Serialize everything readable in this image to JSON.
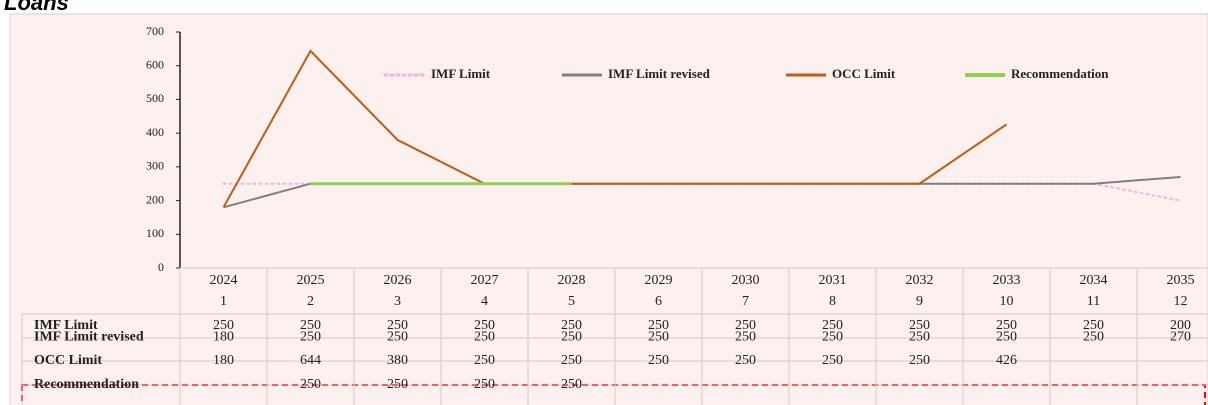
{
  "chart_data": {
    "type": "line",
    "title": "Loans",
    "categories": [
      "2024",
      "2025",
      "2026",
      "2027",
      "2028",
      "2029",
      "2030",
      "2031",
      "2032",
      "2033",
      "2034",
      "2035"
    ],
    "categories2": [
      "1",
      "2",
      "3",
      "4",
      "5",
      "6",
      "7",
      "8",
      "9",
      "10",
      "11",
      "12"
    ],
    "ylim": [
      0,
      700
    ],
    "yticks": [
      0,
      100,
      200,
      300,
      400,
      500,
      600,
      700
    ],
    "series": [
      {
        "name": "IMF Limit",
        "color": "#f0b4e0",
        "label_color": "#9b2c9b",
        "dash": "dotted",
        "values": [
          250,
          250,
          250,
          250,
          250,
          250,
          250,
          250,
          250,
          250,
          250,
          200
        ]
      },
      {
        "name": "IMF Limit revised",
        "color": "#7f7f7f",
        "label_color": "#1f2a4d",
        "values": [
          180,
          250,
          250,
          250,
          250,
          250,
          250,
          250,
          250,
          250,
          250,
          270
        ]
      },
      {
        "name": "OCC Limit",
        "color": "#c55a11",
        "label_color": "#c00000",
        "values": [
          180,
          644,
          380,
          250,
          250,
          250,
          250,
          250,
          250,
          426,
          null,
          null
        ]
      },
      {
        "name": "Recommendation",
        "color": "#92d050",
        "label_color": "#4e9a2a",
        "values": [
          null,
          250,
          250,
          250,
          250,
          null,
          null,
          null,
          null,
          null,
          null,
          null
        ]
      }
    ]
  }
}
